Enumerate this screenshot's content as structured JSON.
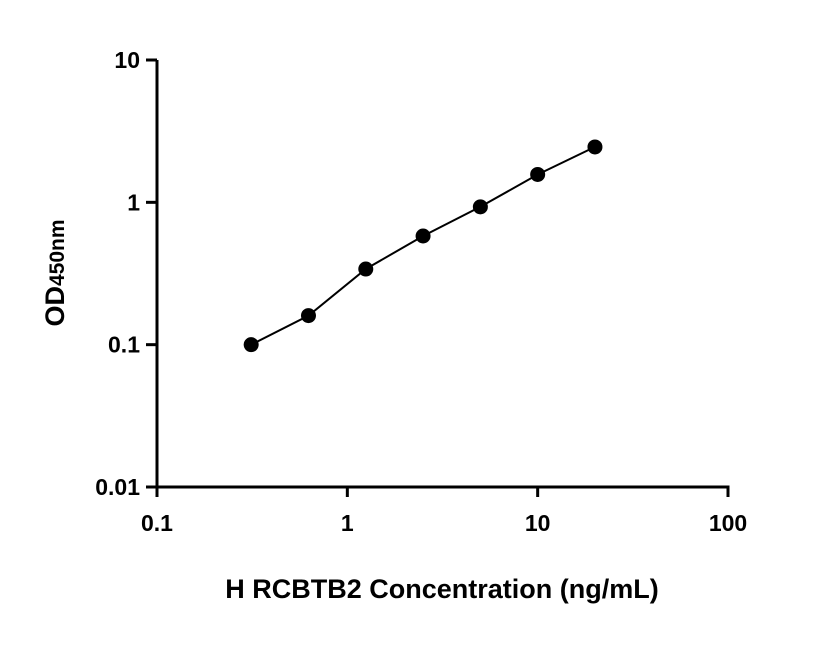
{
  "chart_data": {
    "type": "scatter",
    "title": "",
    "xlabel": "H RCBTB2 Concentration (ng/mL)",
    "ylabel": "OD",
    "ylabel_sub": "450nm",
    "xscale": "log",
    "yscale": "log",
    "xlim": [
      0.1,
      100
    ],
    "ylim": [
      0.01,
      10
    ],
    "xticks": [
      "0.1",
      "1",
      "10",
      "100"
    ],
    "yticks": [
      "0.01",
      "0.1",
      "1",
      "10"
    ],
    "grid": false,
    "legend": "none",
    "marker_color": "#000000",
    "fit_line": true,
    "series": [
      {
        "x": [
          0.3125,
          0.625,
          1.25,
          2.5,
          5,
          10,
          20
        ],
        "y": [
          0.1,
          0.16,
          0.34,
          0.58,
          0.93,
          1.57,
          2.45
        ]
      }
    ]
  }
}
